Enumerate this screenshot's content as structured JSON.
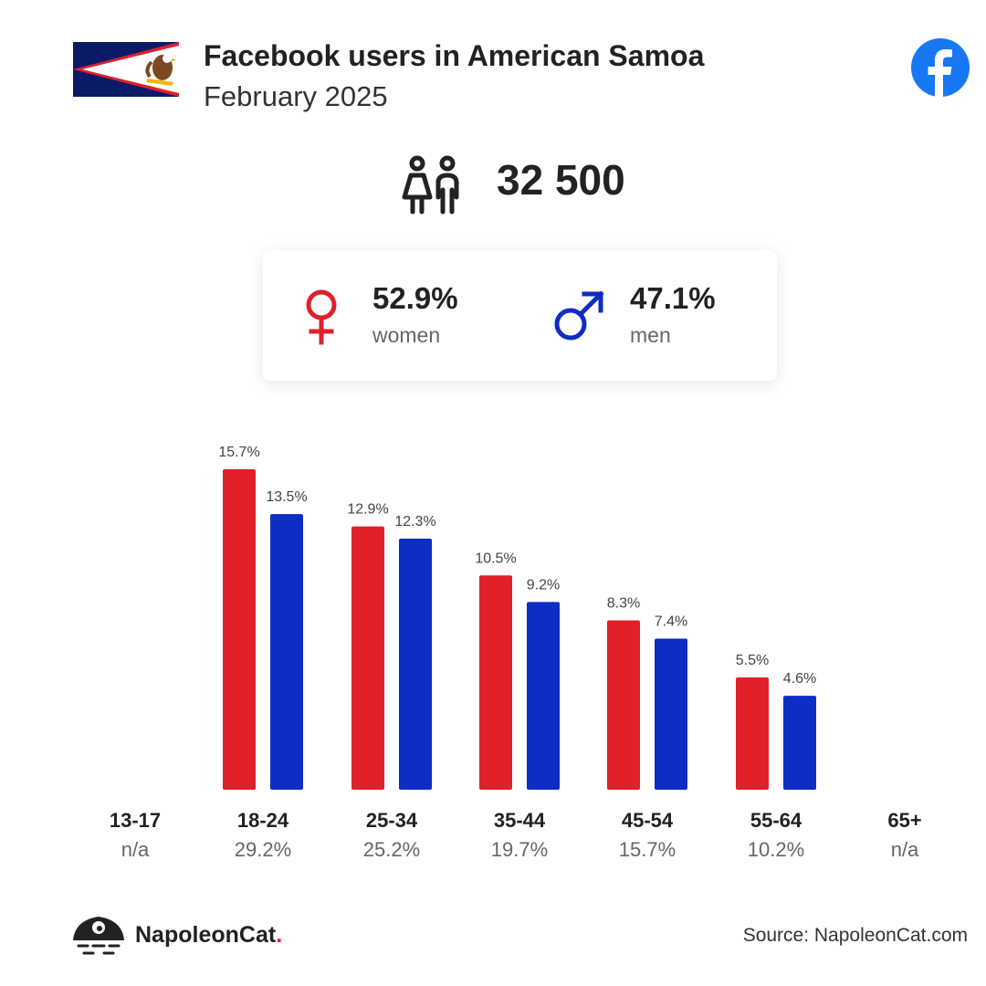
{
  "header": {
    "title": "Facebook users in American Samoa",
    "subtitle": "February 2025"
  },
  "icons": {
    "flag": "american-samoa-flag-icon",
    "platform": "facebook-icon",
    "people": "people-icon",
    "women": "female-symbol-icon",
    "men": "male-symbol-icon",
    "brand": "napoleoncat-logo-icon"
  },
  "total_users": "32 500",
  "gender": {
    "women": {
      "pct": "52.9%",
      "label": "women"
    },
    "men": {
      "pct": "47.1%",
      "label": "men"
    }
  },
  "colors": {
    "women": "#e0202a",
    "men": "#0f2cc4",
    "facebook": "#1877f2"
  },
  "chart_data": {
    "type": "bar",
    "categories": [
      "13-17",
      "18-24",
      "25-34",
      "35-44",
      "45-54",
      "55-64",
      "65+"
    ],
    "category_totals": [
      "n/a",
      "29.2%",
      "25.2%",
      "19.7%",
      "15.7%",
      "10.2%",
      "n/a"
    ],
    "series": [
      {
        "name": "women",
        "values": [
          null,
          15.7,
          12.9,
          10.5,
          8.3,
          5.5,
          null
        ]
      },
      {
        "name": "men",
        "values": [
          null,
          13.5,
          12.3,
          9.2,
          7.4,
          4.6,
          null
        ]
      }
    ],
    "value_suffix": "%",
    "ylim": [
      0,
      15.7
    ],
    "grid": false,
    "legend": "none"
  },
  "footer": {
    "brand_name": "NapoleonCat",
    "brand_dot": ".",
    "source": "Source: NapoleonCat.com"
  }
}
